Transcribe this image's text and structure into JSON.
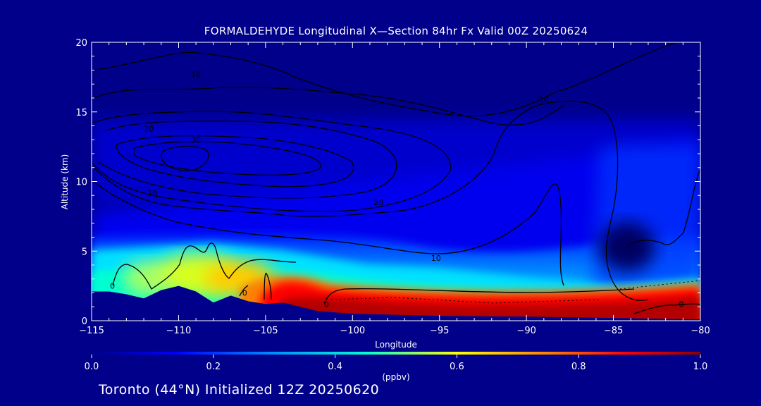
{
  "chart_data": {
    "type": "heatmap",
    "title": "FORMALDEHYDE Longitudinal X—Section 84hr  Fx Valid 00Z 20250624",
    "xlabel": "Longitude",
    "ylabel": "Altitude (km)",
    "xlim": [
      -115,
      -80
    ],
    "ylim": [
      0,
      20
    ],
    "x_ticks": [
      -115,
      -110,
      -105,
      -100,
      -95,
      -90,
      -85,
      -80
    ],
    "x_tick_labels": [
      "−115",
      "−110",
      "−105",
      "−100",
      "−95",
      "−90",
      "−85",
      "−80"
    ],
    "y_ticks": [
      0,
      5,
      10,
      15,
      20
    ],
    "colorbar": {
      "label": "(ppbv)",
      "range": [
        0.0,
        1.0
      ],
      "ticks": [
        0.0,
        0.2,
        0.4,
        0.6,
        0.8,
        1.0
      ],
      "tick_labels": [
        "0.0",
        "0.2",
        "0.4",
        "0.6",
        "0.8",
        "1.0"
      ],
      "colors": [
        "#00008b",
        "#0000ff",
        "#00a0ff",
        "#00ffd0",
        "#ffff00",
        "#ff8000",
        "#ff0000",
        "#8b0000"
      ]
    },
    "surface_terrain": [
      {
        "lon": -115,
        "alt": 2.1
      },
      {
        "lon": -114,
        "alt": 2.1
      },
      {
        "lon": -113,
        "alt": 1.9
      },
      {
        "lon": -112,
        "alt": 1.6
      },
      {
        "lon": -111,
        "alt": 2.2
      },
      {
        "lon": -110,
        "alt": 2.5
      },
      {
        "lon": -109,
        "alt": 2.1
      },
      {
        "lon": -108,
        "alt": 1.3
      },
      {
        "lon": -107,
        "alt": 1.8
      },
      {
        "lon": -106,
        "alt": 1.4
      },
      {
        "lon": -105,
        "alt": 1.2
      },
      {
        "lon": -104,
        "alt": 1.3
      },
      {
        "lon": -103,
        "alt": 1.0
      },
      {
        "lon": -102,
        "alt": 0.7
      },
      {
        "lon": -100,
        "alt": 0.5
      },
      {
        "lon": -95,
        "alt": 0.35
      },
      {
        "lon": -90,
        "alt": 0.3
      },
      {
        "lon": -85,
        "alt": 0.2
      },
      {
        "lon": -80,
        "alt": 0.1
      }
    ],
    "contour_labels": [
      {
        "text": "10",
        "lon": -109,
        "alt": 17.7
      },
      {
        "text": "20",
        "lon": -111.7,
        "alt": 13.8
      },
      {
        "text": "30",
        "lon": -109,
        "alt": 13.0
      },
      {
        "text": "10",
        "lon": -111.5,
        "alt": 9.2
      },
      {
        "text": "10",
        "lon": -89,
        "alt": 15.9
      },
      {
        "text": "20",
        "lon": -98.5,
        "alt": 8.5
      },
      {
        "text": "10",
        "lon": -95.2,
        "alt": 4.5
      },
      {
        "text": "0",
        "lon": -113.8,
        "alt": 2.5
      },
      {
        "text": "0",
        "lon": -106.2,
        "alt": 2.0
      },
      {
        "text": "0",
        "lon": -101.5,
        "alt": 1.2
      },
      {
        "text": "0",
        "lon": -81.1,
        "alt": 1.2
      }
    ]
  },
  "footer": "Toronto (44°N) Initialized 12Z 20250620"
}
